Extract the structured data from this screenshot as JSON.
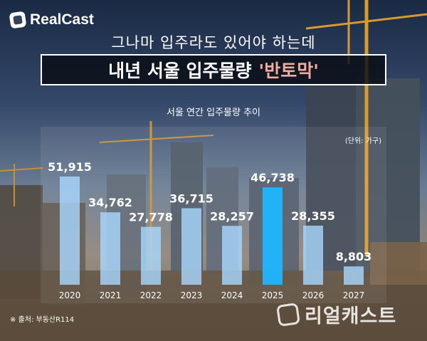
{
  "brand": {
    "logo_text": "RealCast",
    "watermark_text": "리얼캐스트"
  },
  "headline": {
    "subtitle": "그나마 입주라도 있어야 하는데",
    "title_main": "내년 서울 입주물량",
    "title_accent": "'반토막'"
  },
  "chart_data": {
    "type": "bar",
    "title": "서울 연간 입주물량 추이",
    "unit": "(단위: 가구)",
    "categories": [
      "2020",
      "2021",
      "2022",
      "2023",
      "2024",
      "2025",
      "2026",
      "2027"
    ],
    "values": [
      51915,
      34762,
      27778,
      36715,
      28257,
      46738,
      28355,
      8803
    ],
    "value_labels": [
      "51,915",
      "34,762",
      "27,778",
      "36,715",
      "28,257",
      "46,738",
      "28,355",
      "8,803"
    ],
    "highlight_category": "2025",
    "ylim": [
      0,
      56000
    ],
    "colors": {
      "bar": "#a9d8ff",
      "highlight": "#1fb6ff",
      "label": "#ffffff"
    }
  },
  "source": "※ 출처: 부동산R114"
}
